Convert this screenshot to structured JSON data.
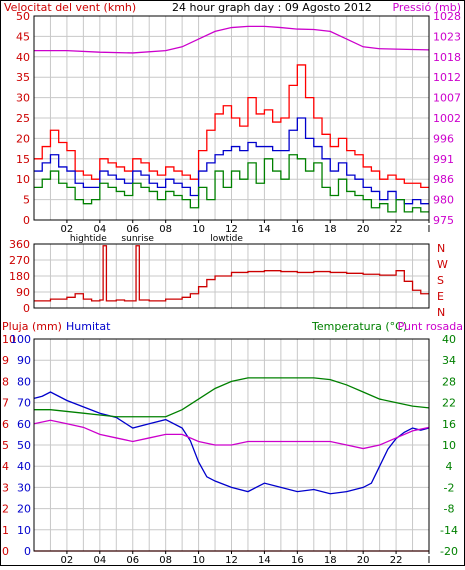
{
  "chart_data": [
    {
      "type": "line",
      "title": "24 hour graph day : 09 Agosto 2012",
      "left_axis_label": "Velocitat del vent (kmh)",
      "right_axis_label": "Pressió (mb)",
      "left_ticks": [
        0,
        5,
        10,
        15,
        20,
        25,
        30,
        35,
        40,
        45,
        50
      ],
      "right_ticks": [
        975,
        980,
        986,
        991,
        996,
        1002,
        1007,
        1012,
        1018,
        1023,
        1028
      ],
      "ylim_left": [
        0,
        50
      ],
      "ylim_right": [
        975,
        1028
      ],
      "xlim": [
        0,
        24
      ],
      "x_tick_labels": [
        "02",
        "04",
        "06",
        "08",
        "10",
        "12",
        "14",
        "16",
        "18",
        "20",
        "22",
        "I"
      ],
      "x_event_labels": [
        {
          "label": "hightide",
          "x": 3.3
        },
        {
          "label": "sunrise",
          "x": 6.3
        },
        {
          "label": "lowtide",
          "x": 11.7
        }
      ],
      "grid": true,
      "colors": {
        "gust": "#ff0000",
        "average": "#0000cc",
        "direction_speed": "#008000",
        "pressure": "#cc00cc",
        "axis_left": "#cc0000",
        "axis_right": "#cc00cc"
      },
      "series": [
        {
          "name": "",
          "color": "#ff0000",
          "x": [
            0,
            0.5,
            1,
            1.5,
            2,
            2.5,
            3,
            3.5,
            4,
            4.5,
            5,
            5.5,
            6,
            6.5,
            7,
            7.5,
            8,
            8.5,
            9,
            9.5,
            10,
            10.5,
            11,
            11.5,
            12,
            12.5,
            13,
            13.5,
            14,
            14.5,
            15,
            15.5,
            16,
            16.5,
            17,
            17.5,
            18,
            18.5,
            19,
            19.5,
            20,
            20.5,
            21,
            21.5,
            22,
            22.5,
            23,
            23.5
          ],
          "values": [
            15,
            18,
            22,
            19,
            17,
            12,
            11,
            10,
            15,
            14,
            13,
            12,
            15,
            14,
            12,
            11,
            13,
            12,
            11,
            10,
            17,
            22,
            26,
            28,
            25,
            23,
            30,
            26,
            27,
            24,
            25,
            33,
            38,
            30,
            25,
            21,
            18,
            20,
            17,
            16,
            13,
            12,
            10,
            11,
            10,
            9,
            9,
            8
          ]
        },
        {
          "name": "",
          "color": "#0000cc",
          "x": [
            0,
            0.5,
            1,
            1.5,
            2,
            2.5,
            3,
            3.5,
            4,
            4.5,
            5,
            5.5,
            6,
            6.5,
            7,
            7.5,
            8,
            8.5,
            9,
            9.5,
            10,
            10.5,
            11,
            11.5,
            12,
            12.5,
            13,
            13.5,
            14,
            14.5,
            15,
            15.5,
            16,
            16.5,
            17,
            17.5,
            18,
            18.5,
            19,
            19.5,
            20,
            20.5,
            21,
            21.5,
            22,
            22.5,
            23,
            23.5
          ],
          "values": [
            12,
            14,
            16,
            13,
            12,
            9,
            8,
            8,
            12,
            11,
            10,
            9,
            12,
            11,
            9,
            8,
            10,
            9,
            8,
            6,
            12,
            14,
            16,
            17,
            18,
            17,
            19,
            18,
            18,
            17,
            17,
            22,
            25,
            20,
            18,
            15,
            12,
            14,
            11,
            10,
            8,
            7,
            5,
            7,
            5,
            4,
            5,
            4
          ]
        },
        {
          "name": "",
          "color": "#008000",
          "x": [
            0,
            0.5,
            1,
            1.5,
            2,
            2.5,
            3,
            3.5,
            4,
            4.5,
            5,
            5.5,
            6,
            6.5,
            7,
            7.5,
            8,
            8.5,
            9,
            9.5,
            10,
            10.5,
            11,
            11.5,
            12,
            12.5,
            13,
            13.5,
            14,
            14.5,
            15,
            15.5,
            16,
            16.5,
            17,
            17.5,
            18,
            18.5,
            19,
            19.5,
            20,
            20.5,
            21,
            21.5,
            22,
            22.5,
            23,
            23.5
          ],
          "values": [
            8,
            10,
            12,
            9,
            8,
            5,
            4,
            5,
            9,
            8,
            7,
            6,
            9,
            8,
            7,
            5,
            7,
            6,
            5,
            3,
            8,
            5,
            12,
            8,
            12,
            10,
            14,
            9,
            15,
            12,
            10,
            16,
            15,
            12,
            14,
            8,
            6,
            10,
            7,
            6,
            5,
            3,
            4,
            2,
            5,
            2,
            3,
            2
          ]
        },
        {
          "name": "",
          "color": "#cc00cc",
          "axis": "right",
          "x": [
            0,
            2,
            4,
            6,
            8,
            9,
            10,
            11,
            12,
            13,
            14,
            15,
            16,
            17,
            18,
            19,
            20,
            21,
            22,
            23,
            24
          ],
          "values": [
            1019,
            1019,
            1018.6,
            1018.4,
            1019,
            1020,
            1022,
            1024,
            1025,
            1025.3,
            1025.3,
            1025,
            1024.6,
            1024.5,
            1024,
            1022,
            1020,
            1019.5,
            1019.4,
            1019.3,
            1019.2
          ]
        }
      ]
    },
    {
      "type": "line",
      "title": "",
      "left_ticks": [
        0,
        90,
        180,
        270,
        360
      ],
      "right_axis_letters": [
        "N",
        "W",
        "S",
        "E",
        "N"
      ],
      "ylim": [
        0,
        360
      ],
      "xlim": [
        0,
        24
      ],
      "grid": true,
      "series": [
        {
          "name": "",
          "color": "#cc0000",
          "x": [
            0,
            1,
            2,
            2.5,
            3,
            3.5,
            4,
            4.2,
            4.4,
            5,
            5.5,
            6,
            6.2,
            6.4,
            7,
            8,
            9,
            9.5,
            10,
            10.5,
            11,
            12,
            13,
            14,
            15,
            16,
            17,
            18,
            19,
            20,
            21,
            22,
            22.5,
            23,
            23.5
          ],
          "values": [
            40,
            50,
            60,
            80,
            50,
            40,
            45,
            350,
            40,
            45,
            40,
            40,
            350,
            45,
            40,
            50,
            60,
            80,
            120,
            160,
            180,
            200,
            205,
            210,
            205,
            200,
            205,
            200,
            195,
            190,
            185,
            210,
            150,
            100,
            80
          ]
        }
      ]
    },
    {
      "type": "line",
      "title": "",
      "left_axis_label": "Pluja (mm)",
      "left2_axis_label": "Humitat",
      "right_axis_label": "Temperatura (°C)",
      "right2_axis_label": "Punt rosada",
      "left_ticks_rain": [
        0,
        1,
        2,
        3,
        4,
        5,
        6,
        7,
        8,
        9,
        10
      ],
      "left_ticks_humidity": [
        0,
        10,
        20,
        30,
        40,
        50,
        60,
        70,
        80,
        90,
        100
      ],
      "right_ticks": [
        -20,
        -14,
        -8,
        -2,
        4,
        10,
        16,
        22,
        28,
        34,
        40
      ],
      "ylim_humidity": [
        0,
        100
      ],
      "ylim_temperature": [
        -20,
        40
      ],
      "xlim": [
        0,
        24
      ],
      "x_tick_labels": [
        "02",
        "04",
        "06",
        "08",
        "10",
        "12",
        "14",
        "16",
        "18",
        "20",
        "22",
        "I"
      ],
      "x_event_labels": [
        {
          "label": "hightide",
          "x": 3.3
        },
        {
          "label": "sunrise",
          "x": 6.3
        },
        {
          "label": "lowtide",
          "x": 11.7
        }
      ],
      "grid": true,
      "series": [
        {
          "name": "Humitat",
          "color": "#0000cc",
          "axis": "humidity",
          "x": [
            0,
            0.5,
            1,
            1.5,
            2,
            3,
            4,
            5,
            6,
            7,
            8,
            9,
            9.5,
            10,
            10.5,
            11,
            12,
            13,
            14,
            15,
            16,
            17,
            18,
            19,
            20,
            20.5,
            21,
            21.5,
            22,
            22.5,
            23,
            23.5,
            24
          ],
          "values": [
            72,
            73,
            75,
            73,
            71,
            68,
            65,
            63,
            58,
            60,
            62,
            58,
            52,
            42,
            35,
            33,
            30,
            28,
            32,
            30,
            28,
            29,
            27,
            28,
            30,
            32,
            40,
            48,
            53,
            56,
            58,
            57,
            58
          ]
        },
        {
          "name": "Temperatura (°C)",
          "color": "#008000",
          "axis": "temperature",
          "x": [
            0,
            1,
            2,
            3,
            4,
            5,
            6,
            7,
            8,
            9,
            10,
            11,
            12,
            13,
            14,
            15,
            16,
            17,
            18,
            19,
            20,
            21,
            22,
            23,
            24
          ],
          "values": [
            20,
            20,
            19.5,
            19,
            18.5,
            18,
            18,
            18,
            18,
            20,
            23,
            26,
            28,
            29,
            29,
            29,
            29,
            29,
            28.5,
            27,
            25,
            23,
            22,
            21,
            20.5
          ]
        },
        {
          "name": "Punt rosada",
          "color": "#cc00cc",
          "axis": "temperature",
          "x": [
            0,
            1,
            2,
            3,
            4,
            5,
            6,
            7,
            8,
            9,
            10,
            11,
            12,
            13,
            14,
            15,
            16,
            17,
            18,
            19,
            20,
            21,
            22,
            23,
            24
          ],
          "values": [
            16,
            17,
            16,
            15,
            13,
            12,
            11,
            12,
            13,
            13,
            11,
            10,
            10,
            11,
            11,
            11,
            11,
            11,
            11,
            10,
            9,
            10,
            12,
            14,
            15
          ]
        },
        {
          "name": "Pluja (mm)",
          "color": "#ff0000",
          "axis": "rain",
          "x": [
            0,
            24
          ],
          "values": [
            0,
            0
          ]
        }
      ]
    }
  ]
}
